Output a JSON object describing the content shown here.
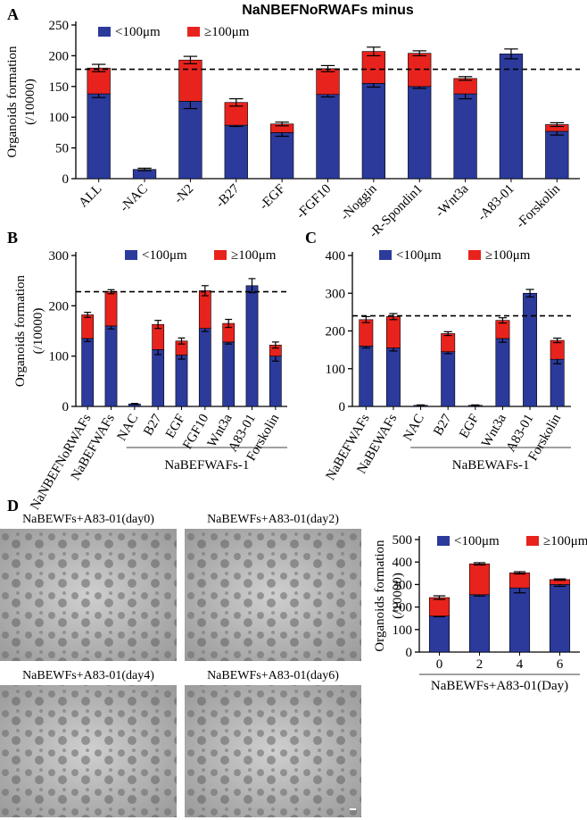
{
  "chart_data": [
    {
      "type": "bar",
      "stacked": true,
      "panel": "A",
      "title": "NaNBEFNoRWAFs minus",
      "ylabel": [
        "Organoids formation",
        "(/10000)"
      ],
      "categories": [
        "ALL",
        "-NAC",
        "-N2",
        "-B27",
        "-EGF",
        "-FGF10",
        "-Noggin",
        "-R-Spondin1",
        "-Wnt3a",
        "-A83-01",
        "-Forskolin"
      ],
      "series": [
        {
          "name": "<100μm",
          "color": "#2b3a9b",
          "values": [
            138,
            15,
            126,
            87,
            75,
            137,
            155,
            150,
            138,
            203,
            77
          ],
          "errors": [
            6,
            2,
            12,
            2,
            6,
            4,
            6,
            3,
            8,
            8,
            6
          ]
        },
        {
          "name": "≥100μm",
          "color": "#e8231d",
          "values": [
            42,
            0,
            67,
            37,
            14,
            42,
            52,
            54,
            25,
            0,
            11
          ],
          "errors": [
            6,
            0,
            6,
            6,
            3,
            5,
            7,
            4,
            3,
            0,
            3
          ]
        }
      ],
      "reference_line": 178,
      "ylim": [
        0,
        250
      ],
      "yticks": [
        0,
        50,
        100,
        150,
        200,
        250
      ]
    },
    {
      "type": "bar",
      "stacked": true,
      "panel": "B",
      "ylabel": [
        "Organoids formation",
        "(/10000)"
      ],
      "categories": [
        "NaNBEFNoRWAFs",
        "NaBEFWAFs",
        "NAC",
        "B27",
        "EGF",
        "FGF10",
        "Wnt3a",
        "A83-01",
        "Forskolin"
      ],
      "group_label": "NaBEFWAFs-1",
      "series": [
        {
          "name": "<100μm",
          "color": "#2b3a9b",
          "values": [
            135,
            160,
            5,
            113,
            102,
            155,
            128,
            240,
            100
          ],
          "errors": [
            6,
            6,
            1,
            10,
            8,
            6,
            4,
            14,
            10
          ]
        },
        {
          "name": "≥100μm",
          "color": "#e8231d",
          "values": [
            47,
            68,
            0,
            50,
            28,
            75,
            37,
            0,
            22
          ],
          "errors": [
            5,
            4,
            0,
            8,
            6,
            10,
            8,
            0,
            6
          ]
        }
      ],
      "reference_line": 228,
      "ylim": [
        0,
        300
      ],
      "yticks": [
        0,
        100,
        200,
        300
      ]
    },
    {
      "type": "bar",
      "stacked": true,
      "panel": "C",
      "categories": [
        "NaBEFWAFs",
        "NaBEWAFs",
        "NAC",
        "B27",
        "EGF",
        "Wnt3a",
        "A83-01",
        "Forskolin"
      ],
      "group_label": "NaBEWAFs-1",
      "series": [
        {
          "name": "<100μm",
          "color": "#2b3a9b",
          "values": [
            160,
            155,
            3,
            145,
            3,
            180,
            300,
            125
          ],
          "errors": [
            5,
            8,
            1,
            5,
            1,
            10,
            10,
            12
          ]
        },
        {
          "name": "≥100μm",
          "color": "#e8231d",
          "values": [
            70,
            83,
            0,
            48,
            0,
            48,
            0,
            50
          ],
          "errors": [
            8,
            8,
            0,
            5,
            0,
            7,
            0,
            6
          ]
        }
      ],
      "reference_line": 240,
      "ylim": [
        0,
        400
      ],
      "yticks": [
        0,
        100,
        200,
        300,
        400
      ]
    },
    {
      "type": "bar",
      "stacked": true,
      "panel": "D",
      "ylabel": [
        "Organoids formation",
        "(/10000)"
      ],
      "categories": [
        "0",
        "2",
        "4",
        "6"
      ],
      "xlabel": "NaBEWFs+A83-01(Day)",
      "series": [
        {
          "name": "<100μm",
          "color": "#2b3a9b",
          "values": [
            160,
            255,
            285,
            300
          ],
          "errors": [
            3,
            6,
            22,
            8
          ]
        },
        {
          "name": "≥100μm",
          "color": "#e8231d",
          "values": [
            82,
            137,
            67,
            22
          ],
          "errors": [
            8,
            5,
            5,
            3
          ]
        }
      ],
      "ylim": [
        0,
        500
      ],
      "yticks": [
        0,
        100,
        200,
        300,
        400,
        500
      ]
    }
  ],
  "images": [
    {
      "label": "NaBEWFs+A83-01(day0)"
    },
    {
      "label": "NaBEWFs+A83-01(day2)"
    },
    {
      "label": "NaBEWFs+A83-01(day4)"
    },
    {
      "label": "NaBEWFs+A83-01(day6)"
    }
  ]
}
